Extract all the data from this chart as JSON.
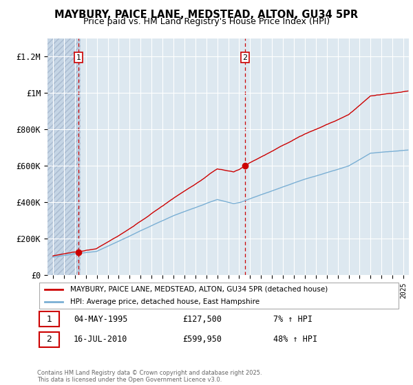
{
  "title_line1": "MAYBURY, PAICE LANE, MEDSTEAD, ALTON, GU34 5PR",
  "title_line2": "Price paid vs. HM Land Registry's House Price Index (HPI)",
  "background_color": "#ffffff",
  "plot_bg_color": "#dde8f0",
  "hatch_facecolor": "#c5d5e5",
  "grid_color": "#ffffff",
  "sale1_date": 1995.34,
  "sale1_price": 127500,
  "sale2_date": 2010.54,
  "sale2_price": 599950,
  "legend_entry1": "MAYBURY, PAICE LANE, MEDSTEAD, ALTON, GU34 5PR (detached house)",
  "legend_entry2": "HPI: Average price, detached house, East Hampshire",
  "copyright_text": "Contains HM Land Registry data © Crown copyright and database right 2025.\nThis data is licensed under the Open Government Licence v3.0.",
  "red_line_color": "#cc0000",
  "blue_line_color": "#7aafd4",
  "dashed_line_color": "#cc0000",
  "ylim_min": 0,
  "ylim_max": 1300000,
  "xlim_min": 1992.5,
  "xlim_max": 2025.5
}
